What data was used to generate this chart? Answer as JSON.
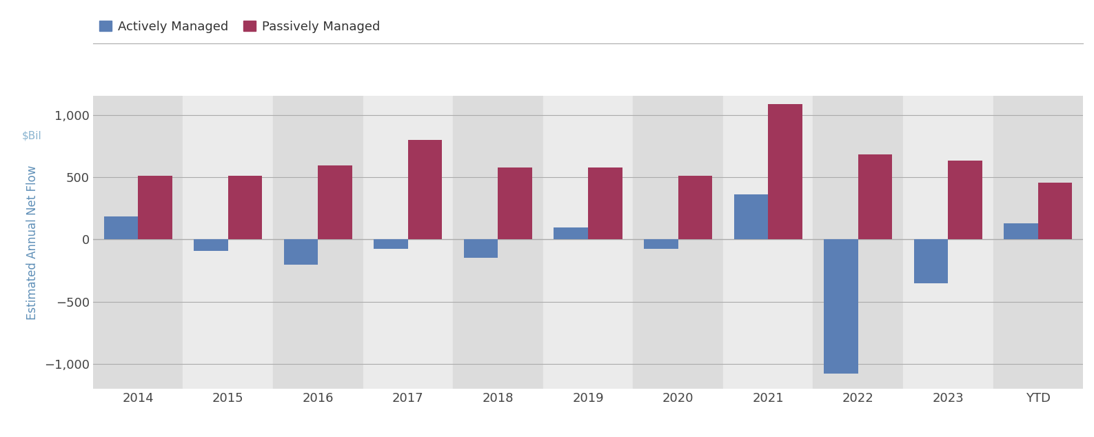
{
  "years": [
    "2014",
    "2015",
    "2016",
    "2017",
    "2018",
    "2019",
    "2020",
    "2021",
    "2022",
    "2023",
    "YTD"
  ],
  "active": [
    185,
    -90,
    -200,
    -75,
    -150,
    95,
    -75,
    360,
    -1075,
    -350,
    130
  ],
  "passive": [
    510,
    510,
    595,
    800,
    575,
    575,
    510,
    1085,
    680,
    635,
    455
  ],
  "active_color": "#5b7fb5",
  "passive_color": "#a0365a",
  "fig_background": "#ffffff",
  "stripe_dark": "#dcdcdc",
  "stripe_light": "#ebebeb",
  "ylabel": "Estimated Annual Net Flow",
  "ylabel_color": "#6090b8",
  "unit_label": "$Bil",
  "unit_label_color": "#8ab4d0",
  "yticks": [
    -1000,
    -500,
    0,
    500,
    1000
  ],
  "ylim": [
    -1200,
    1150
  ],
  "grid_color": "#aaaaaa",
  "tick_color": "#444444",
  "xtick_color": "#444444",
  "legend_active_label": "Actively Managed",
  "legend_passive_label": "Passively Managed",
  "bar_width": 0.38,
  "figsize": [
    15.87,
    6.34
  ],
  "dpi": 100,
  "top_line_color": "#222222"
}
